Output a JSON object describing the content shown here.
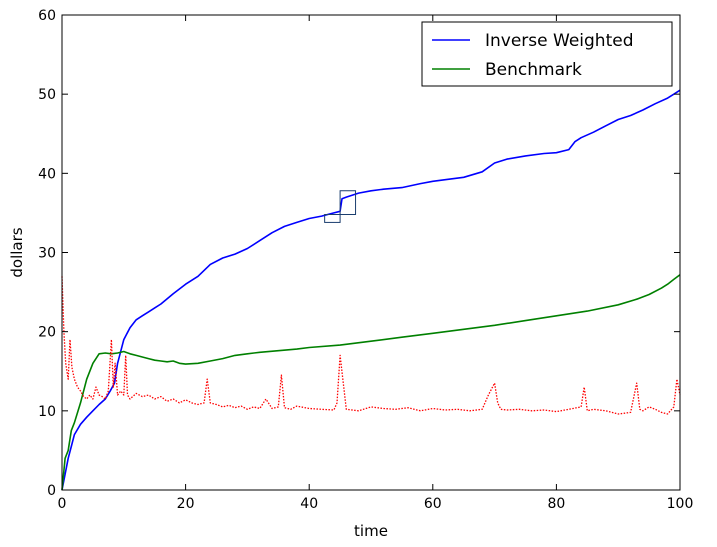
{
  "chart_data": {
    "type": "line",
    "xlabel": "time",
    "ylabel": "dollars",
    "xlim": [
      0,
      100
    ],
    "ylim": [
      0,
      60
    ],
    "xticks": [
      "0",
      "20",
      "40",
      "60",
      "80",
      "100"
    ],
    "yticks": [
      "0",
      "10",
      "20",
      "30",
      "40",
      "50",
      "60"
    ],
    "grid": false,
    "legend_position": "top-right",
    "series": [
      {
        "name": "Inverse Weighted",
        "color": "#0000ff",
        "style": "solid",
        "x": [
          0,
          0.5,
          1,
          1.5,
          2,
          3,
          4,
          5,
          6,
          7,
          7.8,
          8.5,
          9,
          10,
          11,
          12,
          13,
          14,
          15,
          16,
          18,
          20,
          22,
          24,
          26,
          28,
          30,
          32,
          34,
          36,
          38,
          40,
          42,
          43,
          44,
          45,
          45.3,
          46,
          48,
          50,
          52,
          55,
          58,
          60,
          62,
          65,
          68,
          70,
          72,
          75,
          78,
          80,
          82,
          83,
          84,
          86,
          88,
          90,
          92,
          94,
          96,
          98,
          99,
          100
        ],
        "y": [
          0,
          2,
          4,
          5.5,
          7,
          8.3,
          9.2,
          10,
          10.8,
          11.5,
          12.5,
          13.5,
          16,
          19,
          20.5,
          21.5,
          22,
          22.5,
          23,
          23.5,
          24.8,
          26,
          27,
          28.5,
          29.3,
          29.8,
          30.5,
          31.5,
          32.5,
          33.3,
          33.8,
          34.3,
          34.6,
          34.8,
          35,
          35.2,
          36.8,
          37,
          37.5,
          37.8,
          38,
          38.2,
          38.7,
          39,
          39.2,
          39.5,
          40.2,
          41.3,
          41.8,
          42.2,
          42.5,
          42.6,
          43,
          44,
          44.5,
          45.2,
          46,
          46.8,
          47.3,
          48,
          48.8,
          49.5,
          50,
          50.5
        ]
      },
      {
        "name": "Benchmark",
        "color": "#008000",
        "style": "solid",
        "x": [
          0,
          0.5,
          1,
          1.5,
          2,
          3,
          4,
          5,
          6,
          7,
          8,
          9,
          10,
          11,
          12,
          13,
          14,
          15,
          16,
          17,
          18,
          19,
          20,
          22,
          24,
          26,
          28,
          30,
          32,
          35,
          38,
          40,
          45,
          50,
          55,
          60,
          65,
          70,
          75,
          80,
          85,
          90,
          93,
          95,
          97,
          98,
          99,
          100
        ],
        "y": [
          0,
          4,
          5,
          7.5,
          8.5,
          11,
          14,
          16,
          17.2,
          17.3,
          17.2,
          17.3,
          17.5,
          17.2,
          17,
          16.8,
          16.6,
          16.4,
          16.3,
          16.2,
          16.3,
          16,
          15.9,
          16,
          16.3,
          16.6,
          17,
          17.2,
          17.4,
          17.6,
          17.8,
          18,
          18.3,
          18.8,
          19.3,
          19.8,
          20.3,
          20.8,
          21.4,
          22,
          22.6,
          23.4,
          24.1,
          24.7,
          25.5,
          26,
          26.6,
          27.2
        ]
      },
      {
        "name": "",
        "color": "#ff0000",
        "style": "dotted",
        "x": [
          0,
          0.3,
          0.6,
          1,
          1.3,
          1.6,
          2,
          2.5,
          3,
          3.5,
          4,
          4.5,
          5,
          5.5,
          6,
          6.5,
          7,
          7.5,
          8,
          8.3,
          8.6,
          9,
          9.5,
          10,
          10.3,
          10.6,
          11,
          12,
          13,
          14,
          15,
          16,
          17,
          18,
          19,
          20,
          21,
          22,
          23,
          23.5,
          24,
          25,
          26,
          27,
          28,
          29,
          30,
          31,
          32,
          33,
          34,
          35,
          35.5,
          36,
          37,
          38,
          40,
          42,
          44,
          44.5,
          45,
          46,
          48,
          50,
          52,
          54,
          56,
          58,
          60,
          62,
          64,
          66,
          68,
          69,
          70,
          70.5,
          71,
          72,
          74,
          76,
          78,
          80,
          82,
          84,
          84.5,
          85,
          86,
          88,
          90,
          92,
          93,
          93.5,
          94,
          95,
          96,
          97,
          98,
          99,
          99.5,
          100
        ],
        "y": [
          27,
          20,
          16,
          14,
          19,
          15.5,
          14,
          13,
          12.5,
          11.8,
          11.5,
          12,
          11.5,
          13,
          12,
          11.8,
          11.5,
          12.5,
          19,
          13,
          16,
          12,
          12.5,
          12,
          17,
          12,
          11.5,
          12.2,
          11.8,
          12,
          11.5,
          11.8,
          11.2,
          11.5,
          11,
          11.4,
          11,
          10.8,
          11,
          14,
          11,
          10.8,
          10.5,
          10.7,
          10.4,
          10.6,
          10.2,
          10.5,
          10.3,
          11.5,
          10.3,
          10.5,
          14.5,
          10.4,
          10.2,
          10.6,
          10.3,
          10.2,
          10.1,
          11,
          17,
          10.2,
          10,
          10.5,
          10.3,
          10.2,
          10.4,
          10,
          10.3,
          10.1,
          10.2,
          10,
          10.2,
          12,
          13.5,
          11,
          10.2,
          10.1,
          10.2,
          10,
          10.1,
          9.9,
          10.2,
          10.5,
          13,
          10,
          10.2,
          10,
          9.6,
          9.8,
          13.5,
          10.2,
          10,
          10.5,
          10.2,
          9.8,
          9.6,
          10.5,
          14,
          12
        ]
      }
    ],
    "annotations": [
      {
        "type": "rect",
        "x0": 42.5,
        "x1": 45,
        "y0": 33.8,
        "y1": 34.8,
        "color": "#1a3d6e"
      },
      {
        "type": "rect",
        "x0": 45,
        "x1": 47.5,
        "y0": 34.8,
        "y1": 37.8,
        "color": "#1a3d6e"
      }
    ]
  }
}
